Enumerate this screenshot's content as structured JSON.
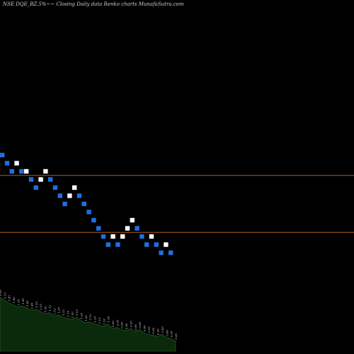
{
  "header": {
    "title": "NSE DQE_BZ.5%~~ Closing Daily data Renko charts MunafaSutra.com"
  },
  "colors": {
    "background": "#000000",
    "up_brick": "#ffffff",
    "down_brick": "#1e6fe0",
    "reference_line": "#b85a1e",
    "volume_fill": "#0b2a0b",
    "volume_stroke": "#2e6b2e"
  },
  "chart_data": {
    "type": "renko",
    "title": "NSE DQE_BZ.5%~~ Closing Daily data Renko charts MunafaSutra.com",
    "grid": false,
    "reference_lines": [
      9.7,
      9.0
    ],
    "ylim": [
      6.0,
      13.0
    ],
    "bricks": [
      {
        "level": 9.95,
        "direction": "down"
      },
      {
        "level": 9.85,
        "direction": "down"
      },
      {
        "level": 9.75,
        "direction": "down"
      },
      {
        "level": 9.85,
        "direction": "up"
      },
      {
        "level": 9.75,
        "direction": "down"
      },
      {
        "level": 9.75,
        "direction": "up"
      },
      {
        "level": 9.65,
        "direction": "down"
      },
      {
        "level": 9.55,
        "direction": "down"
      },
      {
        "level": 9.65,
        "direction": "up"
      },
      {
        "level": 9.75,
        "direction": "up"
      },
      {
        "level": 9.65,
        "direction": "down"
      },
      {
        "level": 9.55,
        "direction": "down"
      },
      {
        "level": 9.45,
        "direction": "down"
      },
      {
        "level": 9.35,
        "direction": "down"
      },
      {
        "level": 9.45,
        "direction": "up"
      },
      {
        "level": 9.55,
        "direction": "up"
      },
      {
        "level": 9.45,
        "direction": "down"
      },
      {
        "level": 9.35,
        "direction": "down"
      },
      {
        "level": 9.25,
        "direction": "down"
      },
      {
        "level": 9.15,
        "direction": "down"
      },
      {
        "level": 9.05,
        "direction": "down"
      },
      {
        "level": 8.95,
        "direction": "down"
      },
      {
        "level": 8.85,
        "direction": "down"
      },
      {
        "level": 8.95,
        "direction": "up"
      },
      {
        "level": 8.85,
        "direction": "down"
      },
      {
        "level": 8.95,
        "direction": "up"
      },
      {
        "level": 9.05,
        "direction": "up"
      },
      {
        "level": 9.15,
        "direction": "up"
      },
      {
        "level": 9.05,
        "direction": "down"
      },
      {
        "level": 8.95,
        "direction": "down"
      },
      {
        "level": 8.85,
        "direction": "down"
      },
      {
        "level": 8.95,
        "direction": "up"
      },
      {
        "level": 8.85,
        "direction": "down"
      },
      {
        "level": 8.75,
        "direction": "down"
      },
      {
        "level": 8.85,
        "direction": "up"
      },
      {
        "level": 8.75,
        "direction": "down"
      }
    ],
    "volume": {
      "values": [
        0.95,
        0.9,
        0.85,
        0.82,
        0.78,
        0.8,
        0.76,
        0.72,
        0.74,
        0.7,
        0.66,
        0.68,
        0.62,
        0.64,
        0.6,
        0.58,
        0.56,
        0.6,
        0.54,
        0.5,
        0.52,
        0.48,
        0.46,
        0.44,
        0.48,
        0.4,
        0.42,
        0.38,
        0.36,
        0.4,
        0.34,
        0.38,
        0.32,
        0.3,
        0.28,
        0.26,
        0.3,
        0.24,
        0.22,
        0.18
      ],
      "labels": [
        "0.95",
        "1.15",
        "1.45",
        "1.40",
        "1.35",
        "1.45",
        "1.40",
        "1.45",
        "1.20",
        "1.25",
        "1.30",
        "1.15",
        "1.10",
        "1.05",
        "1.15",
        "1.10",
        "1.20",
        "1.05",
        "1.00",
        "1.00",
        "1.10",
        "1.05",
        "1.15",
        "1.10",
        "1.00",
        "0.90",
        "0.95",
        "0.85",
        "0.90",
        "0.95",
        "0.90",
        "0.85",
        "0.80",
        "0.95",
        "0.85",
        "0.90",
        "0.85",
        "0.80",
        "0.90",
        "0.85"
      ]
    }
  }
}
